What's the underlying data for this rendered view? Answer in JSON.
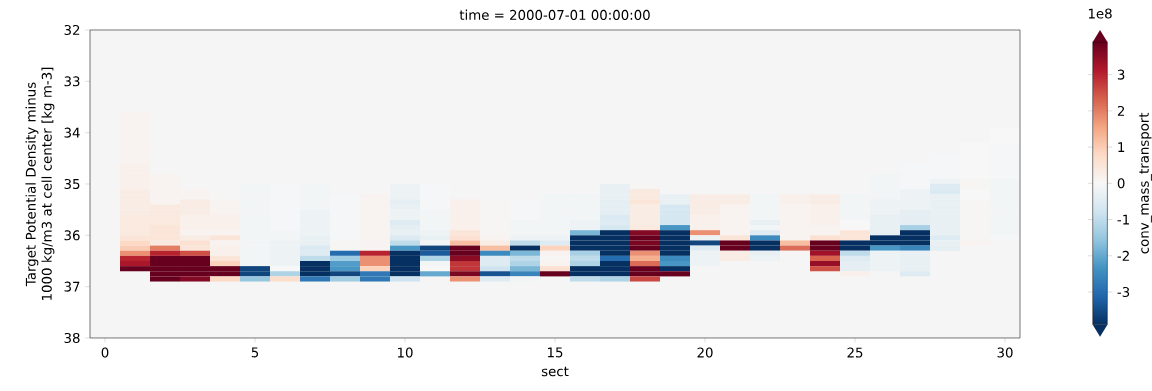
{
  "chart_data": {
    "type": "heatmap",
    "title": "time = 2000-07-01 00:00:00",
    "xlabel": "sect",
    "ylabel": "Target Potential Density minus 1000 kg/m3 at cell center [kg m-3]",
    "clabel": "conv_mass_transport",
    "annotations": [
      "1e8"
    ],
    "x": [
      1,
      2,
      3,
      4,
      5,
      6,
      7,
      8,
      9,
      10,
      11,
      12,
      13,
      14,
      15,
      16,
      17,
      18,
      19,
      20,
      21,
      22,
      23,
      24,
      25,
      26,
      27,
      28,
      29,
      30
    ],
    "y": [
      33.65,
      33.75,
      33.85,
      33.95,
      34.05,
      34.15,
      34.25,
      34.35,
      34.45,
      34.55,
      34.65,
      34.75,
      34.85,
      34.95,
      35.05,
      35.15,
      35.25,
      35.35,
      35.45,
      35.55,
      35.65,
      35.75,
      35.85,
      35.95,
      36.05,
      36.15,
      36.25,
      36.35,
      36.45,
      36.55,
      36.65,
      36.75,
      36.85
    ],
    "xlim": [
      -0.5,
      30.5
    ],
    "ylim": [
      38,
      32
    ],
    "xticks": [
      0,
      5,
      10,
      15,
      20,
      25,
      30
    ],
    "yticks": [
      32,
      33,
      34,
      35,
      36,
      37,
      38
    ],
    "clim": [
      -3.9,
      3.9
    ],
    "cticks": [
      -3,
      -2,
      -1,
      0,
      1,
      2,
      3
    ],
    "cells": [
      [
        0.1,
        null,
        null,
        null,
        null,
        null,
        null,
        null,
        null,
        null,
        null,
        null,
        null,
        null,
        null,
        null,
        null,
        null,
        null,
        null,
        null,
        null,
        null,
        null,
        null,
        null,
        null,
        null,
        null,
        null
      ],
      [
        0.1,
        null,
        null,
        null,
        null,
        null,
        null,
        null,
        null,
        null,
        null,
        null,
        null,
        null,
        null,
        null,
        null,
        null,
        null,
        null,
        null,
        null,
        null,
        null,
        null,
        null,
        null,
        null,
        null,
        null
      ],
      [
        0.1,
        null,
        null,
        null,
        null,
        null,
        null,
        null,
        null,
        null,
        null,
        null,
        null,
        null,
        null,
        null,
        null,
        null,
        null,
        null,
        null,
        null,
        null,
        null,
        null,
        null,
        null,
        null,
        null,
        null
      ],
      [
        0.1,
        null,
        null,
        null,
        null,
        null,
        null,
        null,
        null,
        null,
        null,
        null,
        null,
        null,
        null,
        null,
        null,
        null,
        null,
        null,
        null,
        null,
        null,
        null,
        null,
        null,
        null,
        null,
        null,
        0
      ],
      [
        0.1,
        null,
        null,
        null,
        null,
        null,
        null,
        null,
        null,
        null,
        null,
        null,
        null,
        null,
        null,
        null,
        null,
        null,
        null,
        null,
        null,
        null,
        null,
        null,
        null,
        null,
        null,
        null,
        null,
        0
      ],
      [
        0.1,
        null,
        null,
        null,
        null,
        null,
        null,
        null,
        null,
        null,
        null,
        null,
        null,
        null,
        null,
        null,
        null,
        null,
        null,
        null,
        null,
        null,
        null,
        null,
        null,
        null,
        null,
        null,
        null,
        0
      ],
      [
        0.1,
        null,
        null,
        null,
        null,
        null,
        null,
        null,
        null,
        null,
        null,
        null,
        null,
        null,
        null,
        null,
        null,
        null,
        null,
        null,
        null,
        null,
        null,
        null,
        null,
        null,
        null,
        null,
        0,
        -0.05
      ],
      [
        0.1,
        null,
        null,
        null,
        null,
        null,
        null,
        null,
        null,
        null,
        null,
        null,
        null,
        null,
        null,
        null,
        null,
        null,
        null,
        null,
        null,
        null,
        null,
        null,
        null,
        null,
        null,
        null,
        0,
        -0.05
      ],
      [
        0.1,
        null,
        null,
        null,
        null,
        null,
        null,
        null,
        null,
        null,
        null,
        null,
        null,
        null,
        null,
        null,
        null,
        null,
        null,
        null,
        null,
        null,
        null,
        null,
        null,
        null,
        null,
        -0.05,
        0,
        -0.05
      ],
      [
        0.1,
        null,
        null,
        null,
        null,
        null,
        null,
        null,
        null,
        null,
        null,
        null,
        null,
        null,
        null,
        null,
        null,
        null,
        null,
        null,
        null,
        null,
        null,
        null,
        null,
        null,
        null,
        -0.05,
        0,
        -0.05
      ],
      [
        0.2,
        null,
        null,
        null,
        null,
        null,
        null,
        null,
        null,
        null,
        null,
        null,
        null,
        null,
        null,
        null,
        null,
        null,
        null,
        null,
        null,
        null,
        null,
        null,
        null,
        null,
        -0.05,
        -0.05,
        0,
        -0.05
      ],
      [
        0.2,
        null,
        null,
        null,
        null,
        null,
        null,
        null,
        null,
        null,
        null,
        null,
        null,
        null,
        null,
        null,
        null,
        null,
        null,
        null,
        null,
        null,
        null,
        null,
        null,
        null,
        -0.05,
        -0.05,
        0,
        -0.05
      ],
      [
        0.2,
        0.1,
        null,
        null,
        null,
        null,
        null,
        null,
        null,
        null,
        null,
        null,
        null,
        null,
        null,
        null,
        null,
        null,
        null,
        null,
        null,
        null,
        null,
        null,
        null,
        -0.1,
        -0.05,
        -0.05,
        0,
        -0.05
      ],
      [
        0.2,
        0.1,
        null,
        null,
        null,
        null,
        null,
        null,
        null,
        null,
        null,
        null,
        null,
        null,
        null,
        null,
        null,
        null,
        null,
        null,
        null,
        null,
        null,
        null,
        null,
        -0.1,
        -0.05,
        -0.2,
        0.05,
        -0.1
      ],
      [
        0.2,
        0.1,
        null,
        null,
        -0.1,
        -0.05,
        -0.1,
        null,
        null,
        -0.2,
        -0.05,
        null,
        null,
        null,
        null,
        null,
        -0.3,
        0.05,
        null,
        null,
        null,
        null,
        null,
        null,
        null,
        -0.1,
        -0.05,
        -0.5,
        0.05,
        -0.1
      ],
      [
        0.3,
        0.1,
        0.1,
        null,
        -0.1,
        -0.05,
        -0.1,
        null,
        null,
        -0.2,
        -0.05,
        null,
        null,
        null,
        null,
        null,
        -0.3,
        0.4,
        null,
        null,
        null,
        null,
        null,
        null,
        null,
        -0.1,
        -0.2,
        -0.6,
        0,
        -0.1
      ],
      [
        0.3,
        0.1,
        0.1,
        null,
        -0.1,
        -0.05,
        -0.1,
        -0.05,
        0.1,
        -0.2,
        -0.05,
        null,
        null,
        null,
        -0.1,
        -0.1,
        -0.3,
        0.4,
        -0.3,
        0.3,
        0.3,
        -0.1,
        0.2,
        0.3,
        -0.1,
        -0.1,
        -0.2,
        -0.3,
        0,
        -0.1
      ],
      [
        0.3,
        0.1,
        0.3,
        0.1,
        -0.1,
        -0.05,
        -0.1,
        -0.05,
        0.1,
        -0.4,
        -0.05,
        0.2,
        0.05,
        -0.05,
        -0.1,
        -0.1,
        -0.4,
        0.5,
        -0.3,
        0.3,
        0.3,
        -0.1,
        0.2,
        0.3,
        -0.1,
        -0.2,
        -0.2,
        -0.3,
        0.05,
        -0.1
      ],
      [
        0.3,
        0.4,
        0.3,
        0.1,
        -0.1,
        -0.05,
        -0.1,
        -0.05,
        0.1,
        -0.3,
        -0.05,
        0.2,
        0.05,
        -0.05,
        -0.1,
        -0.1,
        -0.4,
        0.3,
        -0.7,
        0.3,
        0.1,
        -0.1,
        0.1,
        0.2,
        -0.1,
        -0.2,
        -0.2,
        -0.3,
        0.05,
        -0.1
      ],
      [
        0.3,
        0.4,
        0.3,
        0.1,
        -0.1,
        -0.05,
        -0.2,
        -0.05,
        0.1,
        -0.2,
        -0.1,
        0.2,
        0.05,
        -0.05,
        -0.1,
        -0.1,
        -0.4,
        0.3,
        -0.7,
        0.3,
        0.1,
        -0.1,
        0.1,
        0.2,
        -0.1,
        -0.2,
        -0.4,
        -0.3,
        0.05,
        -0.1
      ],
      [
        0.4,
        0.4,
        0.2,
        0.2,
        -0.1,
        -0.05,
        -0.2,
        -0.05,
        0.1,
        -0.2,
        -0.1,
        0.2,
        0.05,
        -0.05,
        -0.1,
        -0.1,
        -0.6,
        0.3,
        -0.7,
        0.2,
        0.1,
        -0.1,
        0.1,
        0.2,
        -0.1,
        -0.3,
        -0.4,
        -0.3,
        0.05,
        -0.1
      ],
      [
        0.4,
        0.4,
        0.2,
        0.2,
        -0.1,
        -0.05,
        -0.2,
        -0.05,
        0.1,
        -0.5,
        -0.1,
        0.2,
        0.05,
        -0.1,
        -0.1,
        -0.2,
        -0.5,
        0.3,
        -0.7,
        0.2,
        0.1,
        -0.3,
        0.1,
        0.2,
        0,
        -0.3,
        -0.4,
        -0.3,
        0.05,
        -0.1
      ],
      [
        0.4,
        0.5,
        0.2,
        0.2,
        -0.1,
        -0.05,
        -0.2,
        -0.05,
        0.1,
        -0.4,
        -0.1,
        0.2,
        0.05,
        -0.1,
        -0.1,
        -0.2,
        -0.7,
        0.4,
        -2.3,
        0.2,
        0.1,
        -0.1,
        0.1,
        0.1,
        0,
        -0.3,
        -1.3,
        -0.3,
        0.05,
        -0.1
      ],
      [
        0.4,
        0.5,
        0.1,
        0.1,
        -0.1,
        -0.1,
        -0.2,
        -0.05,
        0.1,
        -0.3,
        -0.2,
        0.5,
        0.05,
        -0.1,
        -0.1,
        -1.8,
        -3.9,
        3.6,
        -3.9,
        1.8,
        0.1,
        -0.5,
        0.1,
        0.1,
        0.5,
        -0.3,
        -3.9,
        -0.3,
        0.05,
        -0.1
      ],
      [
        0.5,
        0.5,
        0.3,
        0.5,
        -0.1,
        -0.1,
        -0.3,
        -0.05,
        0.1,
        -0.6,
        -0.3,
        0.6,
        0.1,
        -0.2,
        -0.2,
        -3.9,
        -3.9,
        3.9,
        -3.9,
        -0.2,
        0.5,
        -2.5,
        0.1,
        0.6,
        0.5,
        -3.9,
        -3.9,
        -0.5,
        0.05,
        -0.05
      ],
      [
        0.8,
        0.4,
        0.6,
        0.1,
        -0.1,
        -0.2,
        -0.3,
        0.05,
        0.1,
        -1.0,
        -0.1,
        1.2,
        0.3,
        -1.0,
        -0.5,
        -3.9,
        -3.9,
        3.7,
        -3.9,
        -3.6,
        3.9,
        -3.9,
        1.2,
        3.9,
        -3.9,
        -3.9,
        -3.9,
        -0.3,
        0.1,
        null
      ],
      [
        1.0,
        2.0,
        0.5,
        0.2,
        -0.1,
        -0.2,
        -0.6,
        0.05,
        0.1,
        -2.3,
        -3.6,
        3.9,
        1.2,
        -3.9,
        0.9,
        -3.9,
        -3.9,
        3.9,
        -3.9,
        -0.5,
        3.9,
        -3.9,
        2.2,
        3.9,
        -3.9,
        -2.3,
        -2.6,
        -0.4,
        null,
        null
      ],
      [
        1.8,
        3.0,
        2.5,
        0.2,
        -0.1,
        -0.2,
        -0.5,
        -3.0,
        3.0,
        -3.9,
        -3.3,
        3.9,
        -2.5,
        -1.8,
        0.1,
        -1.3,
        -3.9,
        1.8,
        -3.9,
        -0.2,
        0.3,
        -0.3,
        0.05,
        3.3,
        -1.0,
        -0.2,
        -0.3,
        null,
        null,
        null
      ],
      [
        3.0,
        3.9,
        3.9,
        0.5,
        -0.1,
        -0.2,
        -1.0,
        -1.4,
        1.8,
        -3.9,
        -1.2,
        3.5,
        -0.5,
        -1.0,
        0.05,
        -1.0,
        -3.0,
        1.4,
        -2.5,
        -0.2,
        0.3,
        -0.2,
        null,
        2.3,
        -0.5,
        -0.2,
        -0.3,
        null,
        null,
        null
      ],
      [
        3.2,
        3.9,
        3.9,
        0.9,
        -0.1,
        -0.2,
        -3.9,
        -2.2,
        1.8,
        -3.9,
        -0.1,
        2.8,
        -0.5,
        -1.2,
        0.1,
        -1.2,
        -3.9,
        2.2,
        -2.3,
        -0.2,
        null,
        null,
        null,
        3.4,
        -0.4,
        -0.2,
        -0.3,
        null,
        null,
        null
      ],
      [
        3.9,
        3.9,
        3.9,
        3.9,
        -3.6,
        0,
        -3.9,
        -2.3,
        0.9,
        -3.9,
        0,
        2.8,
        -0.8,
        -1.8,
        0.6,
        -3.9,
        -3.9,
        3.9,
        -3.9,
        null,
        null,
        null,
        null,
        2.5,
        -0.4,
        -0.2,
        -0.3,
        null,
        null,
        null
      ],
      [
        null,
        3.9,
        3.9,
        3.9,
        -3.6,
        -1.2,
        -3.9,
        -3.6,
        -2.8,
        -3.9,
        -2.0,
        3.7,
        -3.4,
        -2.6,
        3.9,
        -3.9,
        -3.9,
        3.9,
        3.9,
        null,
        null,
        null,
        null,
        null,
        0.2,
        null,
        -0.5,
        null,
        null,
        null
      ],
      [
        null,
        3.9,
        3.6,
        0.8,
        -1.5,
        0.7,
        -2.8,
        -1.4,
        -2.8,
        -0.8,
        null,
        1.8,
        -0.5,
        -0.1,
        null,
        -1.0,
        -1.2,
        2.6,
        null,
        null,
        null,
        null,
        null,
        null,
        null,
        null,
        null,
        null,
        null,
        null
      ]
    ]
  }
}
